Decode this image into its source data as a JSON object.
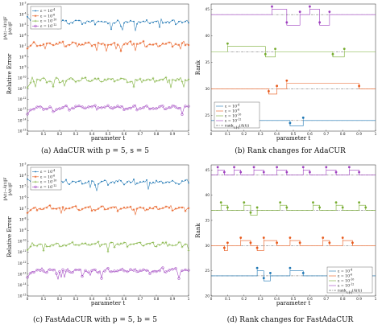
{
  "chart_data": [
    {
      "id": "a",
      "type": "line",
      "yscale": "log",
      "caption": "(a)  AdaCUR with p = 5, s = 5",
      "xlabel": "parameter t",
      "ylabel": "Relative Error",
      "ylabel_frac_num": "‖A(t)−Â(t)‖F",
      "ylabel_frac_den": "‖A(t)‖F",
      "xlim": [
        0,
        1
      ],
      "ylim_exp": [
        -15,
        -3
      ],
      "xticks": [
        "0",
        "0.1",
        "0.2",
        "0.3",
        "0.4",
        "0.5",
        "0.6",
        "0.7",
        "0.8",
        "0.9",
        "1"
      ],
      "yticks": [
        "10^{-15}",
        "10^{-14}",
        "10^{-13}",
        "10^{-12}",
        "10^{-11}",
        "10^{-10}",
        "10^{-9}",
        "10^{-8}",
        "10^{-7}",
        "10^{-6}",
        "10^{-5}",
        "10^{-4}",
        "10^{-3}"
      ],
      "legend": [
        "ε = 10^{-4}",
        "ε = 10^{-6}",
        "ε = 10^{-10}",
        "ε = 10^{-12}"
      ],
      "legend_loc": "top-left",
      "colors": [
        "#1f77b4",
        "#e8591a",
        "#77ac30",
        "#9e3fbf"
      ],
      "markers": [
        "dot",
        "star",
        "plus",
        "circle"
      ],
      "series_base": [
        -4.7,
        -6.8,
        -10.2,
        -12.8
      ],
      "series_start": [
        -4.2,
        -7.2,
        -10.9,
        -13.4
      ]
    },
    {
      "id": "b",
      "type": "step",
      "caption": "(b)  Rank changes for AdaCUR",
      "xlabel": "parameter t",
      "ylabel": "Rank",
      "xlim": [
        0,
        1
      ],
      "ylim": [
        22,
        46
      ],
      "xticks": [
        "0",
        "0.1",
        "0.2",
        "0.3",
        "0.4",
        "0.5",
        "0.6",
        "0.7",
        "0.8",
        "0.9",
        "1"
      ],
      "yticks": [
        "25",
        "30",
        "35",
        "40",
        "45"
      ],
      "legend": [
        "ε = 10^{-4}",
        "ε = 10^{-6}",
        "ε = 10^{-10}",
        "ε = 10^{-12}",
        "rank_{ε,‖·‖}(A(t))"
      ],
      "legend_loc": "bottom-left",
      "colors": [
        "#1f77b4",
        "#e8591a",
        "#77ac30",
        "#9e3fbf",
        "#333333"
      ],
      "true_rank": [
        24,
        30,
        37,
        44
      ],
      "series": [
        {
          "name": "ε = 10^{-4}",
          "breaks": [
            [
              0,
              24
            ],
            [
              0.48,
              23
            ],
            [
              0.56,
              24
            ],
            [
              1,
              24
            ]
          ]
        },
        {
          "name": "ε = 10^{-6}",
          "breaks": [
            [
              0,
              30
            ],
            [
              0.35,
              29
            ],
            [
              0.4,
              30
            ],
            [
              0.46,
              31
            ],
            [
              0.9,
              30
            ],
            [
              1,
              30
            ]
          ]
        },
        {
          "name": "ε = 10^{-10}",
          "breaks": [
            [
              0,
              37
            ],
            [
              0.1,
              38
            ],
            [
              0.33,
              36
            ],
            [
              0.39,
              37
            ],
            [
              0.74,
              36
            ],
            [
              0.81,
              37
            ],
            [
              1,
              37
            ]
          ]
        },
        {
          "name": "ε = 10^{-12}",
          "breaks": [
            [
              0,
              44
            ],
            [
              0.37,
              45
            ],
            [
              0.46,
              42
            ],
            [
              0.54,
              44
            ],
            [
              0.6,
              45
            ],
            [
              0.66,
              42
            ],
            [
              0.72,
              44
            ],
            [
              1,
              44
            ]
          ]
        }
      ]
    },
    {
      "id": "c",
      "type": "line",
      "yscale": "log",
      "caption": "(c)  FastAdaCUR with p = 5, b = 5",
      "xlabel": "parameter t",
      "ylabel": "Relative Error",
      "ylabel_frac_num": "‖A(t)−Â(t)‖F",
      "ylabel_frac_den": "‖A(t)‖F",
      "xlim": [
        0,
        1
      ],
      "ylim_exp": [
        -15,
        -3
      ],
      "xticks": [
        "0",
        "0.1",
        "0.2",
        "0.3",
        "0.4",
        "0.5",
        "0.6",
        "0.7",
        "0.8",
        "0.9",
        "1"
      ],
      "yticks": [
        "10^{-15}",
        "10^{-14}",
        "10^{-13}",
        "10^{-12}",
        "10^{-11}",
        "10^{-10}",
        "10^{-9}",
        "10^{-8}",
        "10^{-7}",
        "10^{-6}",
        "10^{-5}",
        "10^{-4}",
        "10^{-3}"
      ],
      "legend": [
        "ε = 10^{-4}",
        "ε = 10^{-6}",
        "ε = 10^{-10}",
        "ε = 10^{-12}"
      ],
      "legend_loc": "top-left",
      "colors": [
        "#1f77b4",
        "#e8591a",
        "#77ac30",
        "#9e3fbf"
      ],
      "markers": [
        "dot",
        "star",
        "plus",
        "circle"
      ],
      "series_base": [
        -4.6,
        -7.0,
        -10.3,
        -12.7
      ],
      "series_start": [
        -4.3,
        -7.4,
        -10.8,
        -13.3
      ]
    },
    {
      "id": "d",
      "type": "step",
      "caption": "(d)  Rank changes for FastAdaCUR",
      "xlabel": "parameter t",
      "ylabel": "Rank",
      "xlim": [
        0,
        1
      ],
      "ylim": [
        20,
        46
      ],
      "xticks": [
        "0",
        "0.1",
        "0.2",
        "0.3",
        "0.4",
        "0.5",
        "0.6",
        "0.7",
        "0.8",
        "0.9",
        "1"
      ],
      "yticks": [
        "20",
        "25",
        "30",
        "35",
        "40",
        "45"
      ],
      "legend": [
        "ε = 10^{-4}",
        "ε = 10^{-6}",
        "ε = 10^{-10}",
        "ε = 10^{-12}",
        "rank_{ε,‖·‖}(A(t))"
      ],
      "legend_loc": "bottom-right",
      "colors": [
        "#1f77b4",
        "#e8591a",
        "#77ac30",
        "#9e3fbf",
        "#333333"
      ],
      "true_rank": [
        24,
        30,
        37,
        44
      ],
      "series": [
        {
          "name": "ε = 10^{-4}",
          "breaks": [
            [
              0,
              24
            ],
            [
              0.28,
              25
            ],
            [
              0.32,
              23
            ],
            [
              0.36,
              24
            ],
            [
              0.48,
              25
            ],
            [
              0.56,
              24
            ],
            [
              1,
              24
            ]
          ]
        },
        {
          "name": "ε = 10^{-6}",
          "breaks": [
            [
              0,
              30
            ],
            [
              0.08,
              29
            ],
            [
              0.1,
              30
            ],
            [
              0.18,
              31
            ],
            [
              0.24,
              30
            ],
            [
              0.28,
              29
            ],
            [
              0.32,
              31
            ],
            [
              0.4,
              30
            ],
            [
              0.48,
              31
            ],
            [
              0.54,
              30
            ],
            [
              0.68,
              31
            ],
            [
              0.72,
              30
            ],
            [
              0.8,
              31
            ],
            [
              0.86,
              30
            ],
            [
              1,
              30
            ]
          ]
        },
        {
          "name": "ε = 10^{-10}",
          "breaks": [
            [
              0,
              37
            ],
            [
              0.06,
              38
            ],
            [
              0.1,
              37
            ],
            [
              0.2,
              38
            ],
            [
              0.24,
              36
            ],
            [
              0.28,
              37
            ],
            [
              0.42,
              38
            ],
            [
              0.46,
              37
            ],
            [
              0.62,
              38
            ],
            [
              0.66,
              37
            ],
            [
              0.76,
              38
            ],
            [
              0.8,
              37
            ],
            [
              0.9,
              38
            ],
            [
              0.94,
              37
            ],
            [
              1,
              37
            ]
          ]
        },
        {
          "name": "ε = 10^{-12}",
          "breaks": [
            [
              0,
              44
            ],
            [
              0.04,
              45
            ],
            [
              0.08,
              44
            ],
            [
              0.14,
              45
            ],
            [
              0.18,
              44
            ],
            [
              0.26,
              45
            ],
            [
              0.32,
              44
            ],
            [
              0.4,
              45
            ],
            [
              0.46,
              44
            ],
            [
              0.56,
              45
            ],
            [
              0.6,
              44
            ],
            [
              0.7,
              45
            ],
            [
              0.76,
              44
            ],
            [
              0.84,
              45
            ],
            [
              0.9,
              44
            ],
            [
              1,
              44
            ]
          ]
        }
      ]
    }
  ]
}
